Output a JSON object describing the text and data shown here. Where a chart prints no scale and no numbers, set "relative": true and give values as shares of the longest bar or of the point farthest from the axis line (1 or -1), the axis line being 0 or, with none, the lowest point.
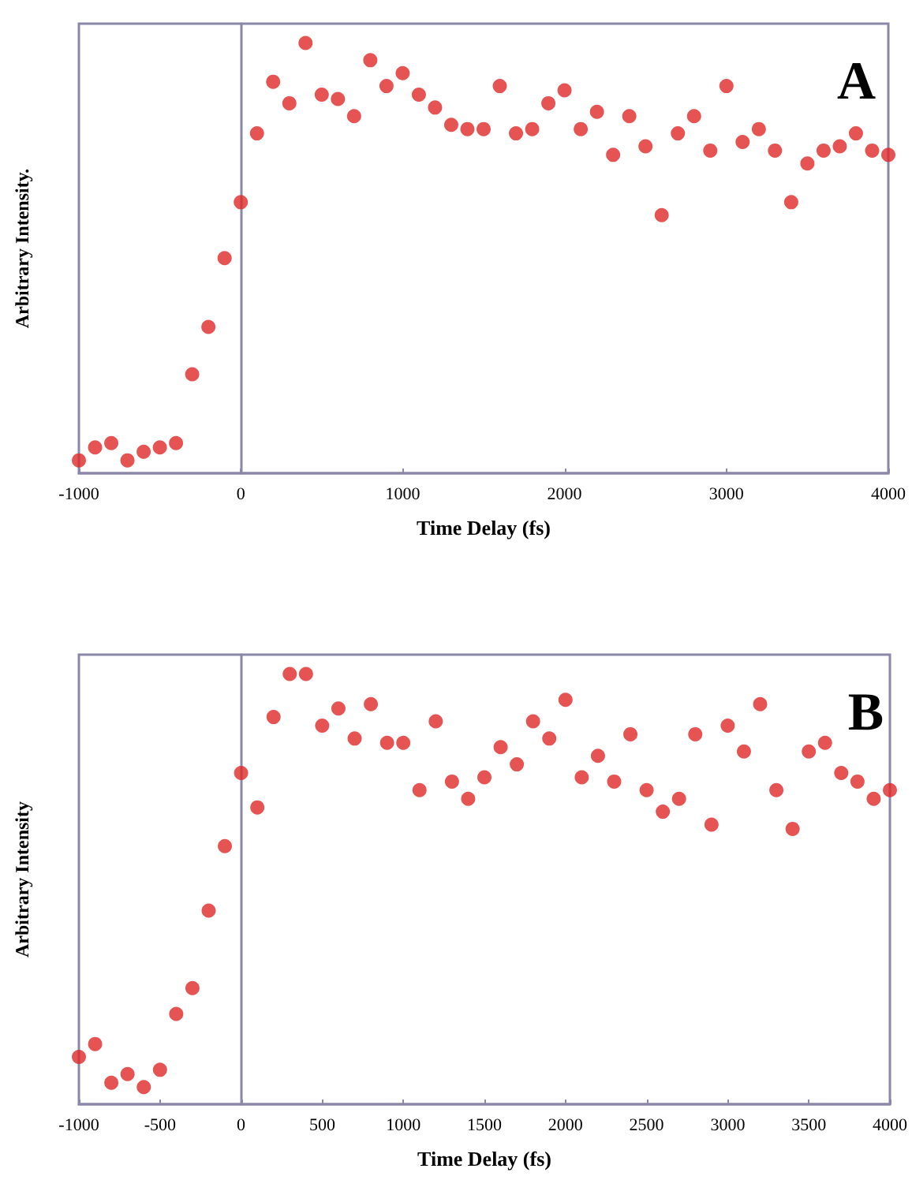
{
  "chart_data": [
    {
      "type": "scatter",
      "xlabel": "Time Delay (fs)",
      "ylabel": "Arbitrary Intensity.",
      "annotations": [
        "A"
      ],
      "relative": true,
      "marker": "circle",
      "xlim": [
        -1000,
        4000
      ],
      "xticks": [
        -1000,
        0,
        1000,
        2000,
        3000,
        4000
      ],
      "x": [
        -1000,
        -900,
        -800,
        -700,
        -600,
        -500,
        -400,
        -300,
        -200,
        -100,
        0,
        100,
        200,
        300,
        400,
        500,
        600,
        700,
        800,
        900,
        1000,
        1100,
        1200,
        1300,
        1400,
        1500,
        1600,
        1700,
        1800,
        1900,
        2000,
        2100,
        2200,
        2300,
        2400,
        2500,
        2600,
        2700,
        2800,
        2900,
        3000,
        3100,
        3200,
        3300,
        3400,
        3500,
        3600,
        3700,
        3800,
        3900,
        4000
      ],
      "series": [
        {
          "color": "#e02828",
          "values": [
            0.03,
            0.06,
            0.07,
            0.03,
            0.05,
            0.06,
            0.07,
            0.23,
            0.34,
            0.5,
            0.63,
            0.79,
            0.91,
            0.86,
            1.0,
            0.88,
            0.87,
            0.83,
            0.96,
            0.9,
            0.93,
            0.88,
            0.85,
            0.81,
            0.8,
            0.8,
            0.9,
            0.79,
            0.8,
            0.86,
            0.89,
            0.8,
            0.84,
            0.74,
            0.83,
            0.76,
            0.6,
            0.79,
            0.83,
            0.75,
            0.9,
            0.77,
            0.8,
            0.75,
            0.63,
            0.72,
            0.75,
            0.76,
            0.79,
            0.75,
            0.74
          ]
        }
      ]
    },
    {
      "type": "scatter",
      "xlabel": "Time Delay (fs)",
      "ylabel": "Arbitrary Intensity",
      "annotations": [
        "B"
      ],
      "relative": true,
      "marker": "circle",
      "xlim": [
        -1000,
        4000
      ],
      "xticks": [
        -1000,
        -500,
        0,
        500,
        1000,
        1500,
        2000,
        2500,
        3000,
        3500,
        4000
      ],
      "x": [
        -1000,
        -900,
        -800,
        -700,
        -600,
        -500,
        -400,
        -300,
        -200,
        -100,
        0,
        100,
        200,
        300,
        400,
        500,
        600,
        700,
        800,
        900,
        1000,
        1100,
        1200,
        1300,
        1400,
        1500,
        1600,
        1700,
        1800,
        1900,
        2000,
        2100,
        2200,
        2300,
        2400,
        2500,
        2600,
        2700,
        2800,
        2900,
        3000,
        3100,
        3200,
        3300,
        3400,
        3500,
        3600,
        3700,
        3800,
        3900,
        4000
      ],
      "series": [
        {
          "color": "#e02828",
          "values": [
            0.11,
            0.14,
            0.05,
            0.07,
            0.04,
            0.08,
            0.21,
            0.27,
            0.45,
            0.6,
            0.77,
            0.69,
            0.9,
            1.0,
            1.0,
            0.88,
            0.92,
            0.85,
            0.93,
            0.84,
            0.84,
            0.73,
            0.89,
            0.75,
            0.71,
            0.76,
            0.83,
            0.79,
            0.89,
            0.85,
            0.94,
            0.76,
            0.81,
            0.75,
            0.86,
            0.73,
            0.68,
            0.71,
            0.86,
            0.65,
            0.88,
            0.82,
            0.93,
            0.73,
            0.64,
            0.82,
            0.84,
            0.77,
            0.75,
            0.71,
            0.73
          ]
        }
      ]
    }
  ]
}
